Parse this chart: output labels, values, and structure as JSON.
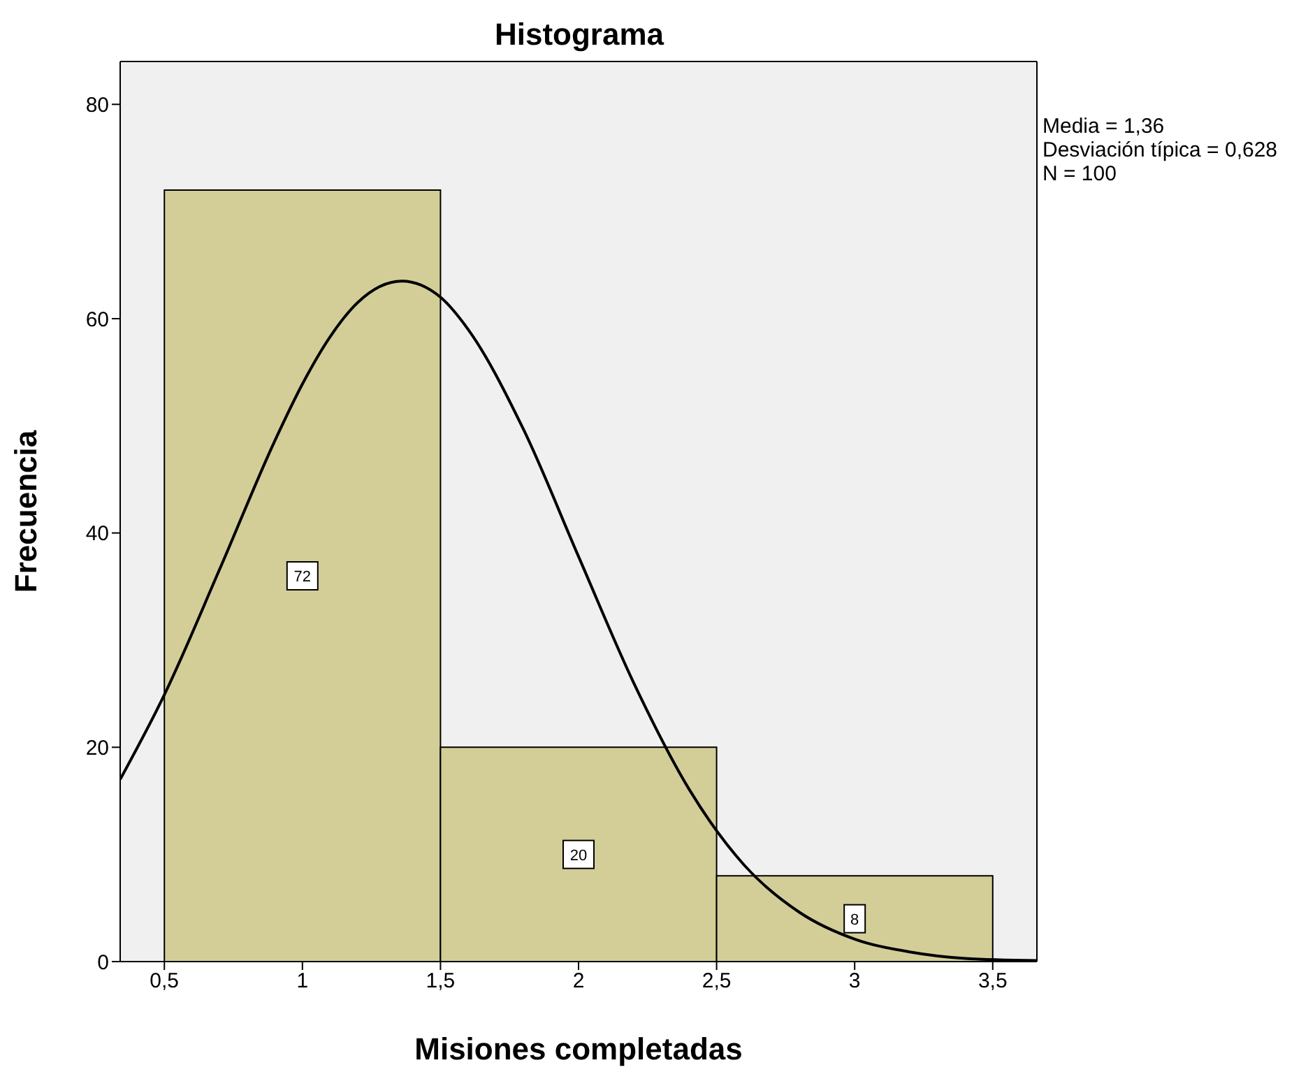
{
  "chart_data": {
    "type": "histogram",
    "title": "Histograma",
    "xlabel": "Misiones completadas",
    "ylabel": "Frecuencia",
    "bins": [
      0.5,
      1.5,
      2.5,
      3.5
    ],
    "values": [
      72,
      20,
      8
    ],
    "value_labels": [
      "72",
      "20",
      "8"
    ],
    "color": "#d3ce98",
    "series": [
      {
        "type": "line",
        "color": "#000000",
        "x": [
          0.34,
          0.5,
          0.7,
          0.9,
          1.0,
          1.1,
          1.2,
          1.36,
          1.5,
          1.6,
          1.8,
          2.0,
          2.2,
          2.4,
          2.6,
          2.8,
          3.0,
          3.2,
          3.4,
          3.66
        ],
        "values": [
          17.0,
          24.9,
          36.6,
          48.6,
          53.9,
          58.3,
          61.5,
          63.5,
          62.0,
          59.0,
          49.7,
          37.8,
          26.0,
          16.1,
          9.0,
          4.6,
          2.1,
          0.9,
          0.3,
          0.1
        ]
      }
    ],
    "xlim": [
      0.34,
      3.66
    ],
    "xticks": [
      {
        "value": 0.5,
        "label": "0,5"
      },
      1,
      {
        "value": 1.5,
        "label": "1,5"
      },
      2,
      {
        "value": 2.5,
        "label": "2,5"
      },
      3,
      {
        "value": 3.5,
        "label": "3,5"
      }
    ],
    "ylim": [
      0,
      84
    ],
    "yticks": [
      0,
      20,
      40,
      60,
      80
    ],
    "annotations": [
      "Media = 1,36",
      "Desviación típica = 0,628",
      "N = 100"
    ],
    "grid": false,
    "marker": "none",
    "line_style": "solid"
  }
}
